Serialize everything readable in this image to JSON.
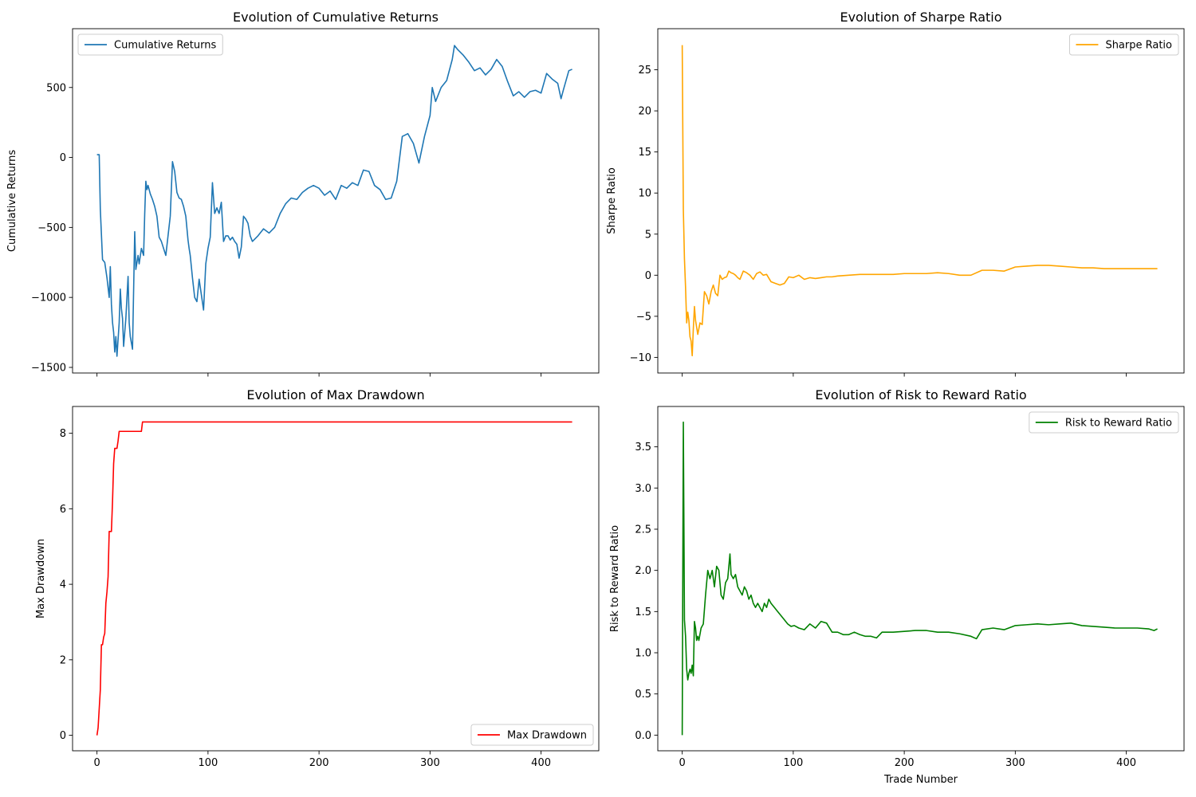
{
  "chart_data": [
    {
      "type": "line",
      "title": "Evolution of Cumulative Returns",
      "xlabel": "",
      "ylabel": "Cumulative Returns",
      "xlim": [
        -22,
        452
      ],
      "ylim": [
        -1540,
        920
      ],
      "xticks": [
        0,
        100,
        200,
        300,
        400
      ],
      "xticks_labeled": false,
      "yticks": [
        -1500,
        -1000,
        -500,
        0,
        500
      ],
      "ytick_labels": [
        "−1500",
        "−1000",
        "−500",
        "0",
        "500"
      ],
      "legend": "top-left",
      "color": "#1f77b4",
      "series": [
        {
          "name": "Cumulative Returns",
          "x": [
            0,
            2,
            3,
            5,
            7,
            9,
            11,
            12,
            13,
            14,
            15,
            16,
            17,
            18,
            20,
            21,
            22,
            23,
            24,
            26,
            28,
            29,
            30,
            32,
            34,
            35,
            37,
            38,
            40,
            42,
            43,
            44,
            45,
            46,
            48,
            50,
            52,
            54,
            56,
            58,
            60,
            62,
            64,
            66,
            68,
            70,
            72,
            74,
            76,
            78,
            80,
            82,
            83,
            84,
            86,
            88,
            90,
            92,
            94,
            96,
            98,
            100,
            102,
            104,
            106,
            108,
            110,
            112,
            114,
            116,
            118,
            120,
            122,
            124,
            126,
            128,
            130,
            132,
            134,
            136,
            138,
            140,
            145,
            150,
            155,
            160,
            165,
            170,
            175,
            180,
            185,
            190,
            195,
            200,
            205,
            210,
            215,
            220,
            225,
            230,
            235,
            240,
            245,
            250,
            255,
            260,
            265,
            270,
            275,
            280,
            285,
            290,
            295,
            300,
            302,
            305,
            310,
            315,
            320,
            322,
            325,
            330,
            335,
            340,
            345,
            350,
            355,
            360,
            365,
            370,
            375,
            380,
            385,
            390,
            395,
            400,
            405,
            410,
            415,
            418,
            420,
            425,
            428
          ],
          "values": [
            20,
            20,
            -370,
            -730,
            -750,
            -860,
            -1000,
            -780,
            -1050,
            -1180,
            -1250,
            -1390,
            -1280,
            -1420,
            -1180,
            -940,
            -1080,
            -1150,
            -1350,
            -1150,
            -850,
            -1180,
            -1280,
            -1370,
            -530,
            -800,
            -700,
            -760,
            -650,
            -700,
            -400,
            -170,
            -230,
            -200,
            -260,
            -300,
            -350,
            -420,
            -570,
            -600,
            -650,
            -700,
            -560,
            -420,
            -30,
            -100,
            -250,
            -290,
            -300,
            -350,
            -420,
            -590,
            -650,
            -700,
            -860,
            -1000,
            -1030,
            -870,
            -980,
            -1090,
            -760,
            -650,
            -570,
            -180,
            -400,
            -360,
            -400,
            -320,
            -600,
            -560,
            -560,
            -590,
            -570,
            -600,
            -620,
            -720,
            -640,
            -420,
            -440,
            -470,
            -560,
            -600,
            -560,
            -510,
            -540,
            -500,
            -400,
            -330,
            -290,
            -300,
            -250,
            -220,
            -200,
            -220,
            -270,
            -240,
            -300,
            -200,
            -220,
            -180,
            -200,
            -90,
            -100,
            -200,
            -230,
            -300,
            -290,
            -170,
            150,
            170,
            100,
            -40,
            150,
            300,
            500,
            400,
            500,
            550,
            700,
            800,
            770,
            730,
            680,
            620,
            640,
            590,
            630,
            700,
            650,
            540,
            440,
            470,
            430,
            470,
            480,
            460,
            600,
            560,
            530,
            420,
            480,
            620,
            630
          ]
        }
      ]
    },
    {
      "type": "line",
      "title": "Evolution of Sharpe Ratio",
      "xlabel": "",
      "ylabel": "Sharpe Ratio",
      "xlim": [
        -22,
        452
      ],
      "ylim": [
        -11.9,
        30.0
      ],
      "xticks": [
        0,
        100,
        200,
        300,
        400
      ],
      "xticks_labeled": false,
      "yticks": [
        -10,
        -5,
        0,
        5,
        10,
        15,
        20,
        25
      ],
      "ytick_labels": [
        "−10",
        "−5",
        "0",
        "5",
        "10",
        "15",
        "20",
        "25"
      ],
      "legend": "top-right",
      "color": "#ffa500",
      "series": [
        {
          "name": "Sharpe Ratio",
          "x": [
            0,
            1,
            2,
            3,
            4,
            5,
            6,
            7,
            8,
            9,
            10,
            11,
            12,
            14,
            16,
            18,
            20,
            22,
            24,
            26,
            28,
            30,
            32,
            34,
            36,
            38,
            40,
            42,
            44,
            46,
            48,
            50,
            52,
            55,
            58,
            61,
            64,
            67,
            70,
            73,
            76,
            80,
            84,
            88,
            92,
            96,
            100,
            105,
            110,
            115,
            120,
            125,
            130,
            135,
            140,
            150,
            160,
            170,
            180,
            190,
            200,
            210,
            220,
            230,
            240,
            250,
            260,
            270,
            280,
            290,
            300,
            310,
            320,
            330,
            340,
            350,
            360,
            370,
            380,
            390,
            400,
            410,
            420,
            428
          ],
          "values": [
            28.0,
            8.0,
            2.0,
            -1.5,
            -5.8,
            -4.5,
            -5.5,
            -7.5,
            -8.0,
            -9.8,
            -6.5,
            -3.8,
            -5.5,
            -7.2,
            -5.8,
            -6.0,
            -2.0,
            -2.5,
            -3.5,
            -2.0,
            -1.2,
            -2.2,
            -2.5,
            0.0,
            -0.5,
            -0.3,
            -0.2,
            0.5,
            0.3,
            0.2,
            0.0,
            -0.3,
            -0.5,
            0.5,
            0.3,
            0.0,
            -0.5,
            0.2,
            0.4,
            0.0,
            0.1,
            -0.8,
            -1.0,
            -1.2,
            -1.0,
            -0.2,
            -0.3,
            0.0,
            -0.5,
            -0.3,
            -0.4,
            -0.3,
            -0.2,
            -0.2,
            -0.1,
            0.0,
            0.1,
            0.1,
            0.1,
            0.1,
            0.2,
            0.2,
            0.2,
            0.3,
            0.2,
            0.0,
            0.0,
            0.6,
            0.6,
            0.5,
            1.0,
            1.1,
            1.2,
            1.2,
            1.1,
            1.0,
            0.9,
            0.9,
            0.8,
            0.8,
            0.8,
            0.8,
            0.8,
            0.8
          ]
        }
      ]
    },
    {
      "type": "line",
      "title": "Evolution of Max Drawdown",
      "xlabel": "",
      "ylabel": "Max Drawdown",
      "xlim": [
        -22,
        452
      ],
      "ylim": [
        -0.41,
        8.71
      ],
      "xticks": [
        0,
        100,
        200,
        300,
        400
      ],
      "xticks_labeled": true,
      "xtick_labels": [
        "0",
        "100",
        "200",
        "300",
        "400"
      ],
      "yticks": [
        0,
        2,
        4,
        6,
        8
      ],
      "ytick_labels": [
        "0",
        "2",
        "4",
        "6",
        "8"
      ],
      "legend": "bottom-right",
      "color": "#ff0000",
      "series": [
        {
          "name": "Max Drawdown",
          "x": [
            0,
            1,
            2,
            3,
            4,
            5,
            6,
            7,
            8,
            9,
            10,
            11,
            12,
            13,
            14,
            15,
            16,
            17,
            18,
            19,
            20,
            40,
            41,
            42,
            428
          ],
          "values": [
            0,
            0.2,
            0.7,
            1.2,
            2.4,
            2.4,
            2.6,
            2.7,
            3.5,
            3.8,
            4.2,
            5.4,
            5.4,
            5.4,
            6.2,
            7.2,
            7.6,
            7.6,
            7.6,
            7.8,
            8.05,
            8.05,
            8.3,
            8.3,
            8.3
          ]
        }
      ]
    },
    {
      "type": "line",
      "title": "Evolution of Risk to Reward Ratio",
      "xlabel": "Trade Number",
      "ylabel": "Risk to Reward Ratio",
      "xlim": [
        -22,
        452
      ],
      "ylim": [
        -0.19,
        3.99
      ],
      "xticks": [
        0,
        100,
        200,
        300,
        400
      ],
      "xticks_labeled": true,
      "xtick_labels": [
        "0",
        "100",
        "200",
        "300",
        "400"
      ],
      "yticks": [
        0.0,
        0.5,
        1.0,
        1.5,
        2.0,
        2.5,
        3.0,
        3.5
      ],
      "ytick_labels": [
        "0.0",
        "0.5",
        "1.0",
        "1.5",
        "2.0",
        "2.5",
        "3.0",
        "3.5"
      ],
      "legend": "top-right",
      "color": "#008000",
      "series": [
        {
          "name": "Risk to Reward Ratio",
          "x": [
            0,
            1,
            2,
            3,
            4,
            5,
            6,
            7,
            8,
            9,
            10,
            11,
            12,
            13,
            14,
            15,
            17,
            19,
            21,
            23,
            25,
            27,
            29,
            31,
            33,
            35,
            37,
            39,
            41,
            43,
            44,
            46,
            48,
            50,
            52,
            54,
            56,
            58,
            60,
            62,
            64,
            66,
            68,
            70,
            72,
            74,
            76,
            78,
            80,
            83,
            86,
            89,
            92,
            95,
            98,
            101,
            105,
            110,
            115,
            120,
            125,
            130,
            135,
            140,
            145,
            150,
            155,
            160,
            165,
            170,
            175,
            180,
            190,
            200,
            210,
            220,
            230,
            240,
            250,
            260,
            265,
            270,
            280,
            290,
            300,
            310,
            320,
            330,
            340,
            350,
            360,
            370,
            380,
            390,
            400,
            410,
            420,
            425,
            428
          ],
          "values": [
            0,
            3.8,
            1.4,
            1.2,
            0.8,
            0.67,
            0.75,
            0.8,
            0.75,
            0.85,
            0.72,
            1.38,
            1.3,
            1.15,
            1.2,
            1.15,
            1.3,
            1.35,
            1.7,
            2.0,
            1.9,
            2.0,
            1.8,
            2.05,
            2.0,
            1.7,
            1.65,
            1.85,
            1.9,
            2.2,
            1.95,
            1.9,
            1.95,
            1.8,
            1.75,
            1.7,
            1.8,
            1.75,
            1.65,
            1.7,
            1.6,
            1.55,
            1.6,
            1.55,
            1.5,
            1.6,
            1.55,
            1.65,
            1.6,
            1.55,
            1.5,
            1.45,
            1.4,
            1.35,
            1.32,
            1.33,
            1.3,
            1.28,
            1.35,
            1.3,
            1.38,
            1.36,
            1.25,
            1.25,
            1.22,
            1.22,
            1.25,
            1.22,
            1.2,
            1.2,
            1.18,
            1.25,
            1.25,
            1.26,
            1.27,
            1.27,
            1.25,
            1.25,
            1.23,
            1.2,
            1.17,
            1.28,
            1.3,
            1.28,
            1.33,
            1.34,
            1.35,
            1.34,
            1.35,
            1.36,
            1.33,
            1.32,
            1.31,
            1.3,
            1.3,
            1.3,
            1.29,
            1.27,
            1.29
          ]
        }
      ]
    }
  ]
}
